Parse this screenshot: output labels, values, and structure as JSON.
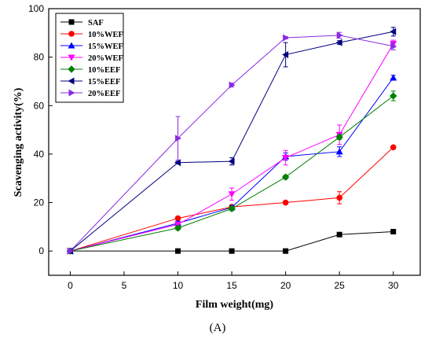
{
  "chart_data": {
    "type": "line",
    "xlabel": "Film weight(mg)",
    "ylabel": "Scavenging activity(%)",
    "caption": "(A)",
    "xlim": [
      -2,
      32.5
    ],
    "ylim": [
      -10,
      100
    ],
    "x_ticks": [
      0,
      5,
      10,
      15,
      20,
      25,
      30
    ],
    "y_ticks": [
      0,
      20,
      40,
      60,
      80,
      100
    ],
    "legend_position": "top-left",
    "x": [
      0,
      10,
      15,
      20,
      25,
      30
    ],
    "series": [
      {
        "name": "SAF",
        "color": "#000000",
        "marker": "square",
        "values": [
          0,
          0,
          0,
          0,
          6.8,
          8
        ],
        "errors": [
          0,
          0,
          0,
          0,
          0.5,
          0.5
        ]
      },
      {
        "name": "10%WEF",
        "color": "#ff0000",
        "marker": "circle",
        "values": [
          0,
          13.5,
          18.2,
          20,
          22,
          42.8
        ],
        "errors": [
          0,
          0.8,
          0.8,
          0.5,
          2.5,
          0.5
        ]
      },
      {
        "name": "15%WEF",
        "color": "#0000ff",
        "marker": "triangle-up",
        "values": [
          0,
          11.5,
          18,
          39,
          41,
          71.5
        ],
        "errors": [
          0,
          0.8,
          0.8,
          1.5,
          2,
          1
        ]
      },
      {
        "name": "20%WEF",
        "color": "#ff00ff",
        "marker": "triangle-down",
        "values": [
          0,
          11,
          23.5,
          38.5,
          48,
          85.5
        ],
        "errors": [
          0,
          0.8,
          2.5,
          3,
          4,
          1.5
        ]
      },
      {
        "name": "10%EEF",
        "color": "#008000",
        "marker": "diamond",
        "values": [
          0,
          9.5,
          17.5,
          30.5,
          47,
          64
        ],
        "errors": [
          0,
          0.8,
          0.8,
          0.8,
          1,
          2
        ]
      },
      {
        "name": "15%EEF",
        "color": "#000080",
        "marker": "triangle-left",
        "values": [
          0,
          36.5,
          37,
          81,
          86,
          90.5
        ],
        "errors": [
          0,
          0.5,
          1.5,
          5,
          0.8,
          1.8
        ]
      },
      {
        "name": "20%EEF",
        "color": "#8a2be2",
        "marker": "triangle-right",
        "values": [
          0,
          46.5,
          68.5,
          88,
          89,
          84.5
        ],
        "errors": [
          0,
          9,
          0.8,
          0.5,
          1.2,
          1.5
        ]
      }
    ]
  }
}
